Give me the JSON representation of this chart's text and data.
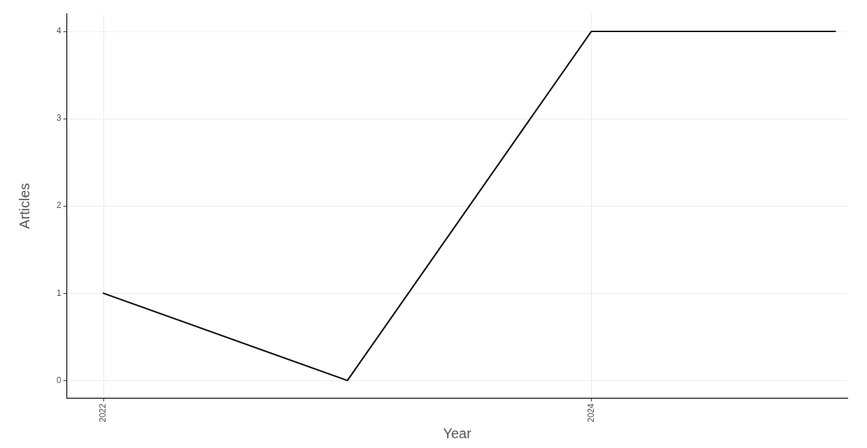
{
  "chart_data": {
    "type": "line",
    "xlabel": "Year",
    "ylabel": "Articles",
    "x": [
      2022,
      2023,
      2024,
      2025
    ],
    "series": [
      {
        "color": "#111111",
        "values": [
          1,
          0,
          4,
          4
        ]
      }
    ],
    "xlim": [
      2021.85,
      2025.05
    ],
    "xticks": [
      2022,
      2024
    ],
    "ylim": [
      -0.2,
      4.2
    ],
    "yticks": [
      0,
      1,
      2,
      3,
      4
    ],
    "grid": true,
    "legend": false,
    "marker": "none",
    "line_style": "solid"
  }
}
